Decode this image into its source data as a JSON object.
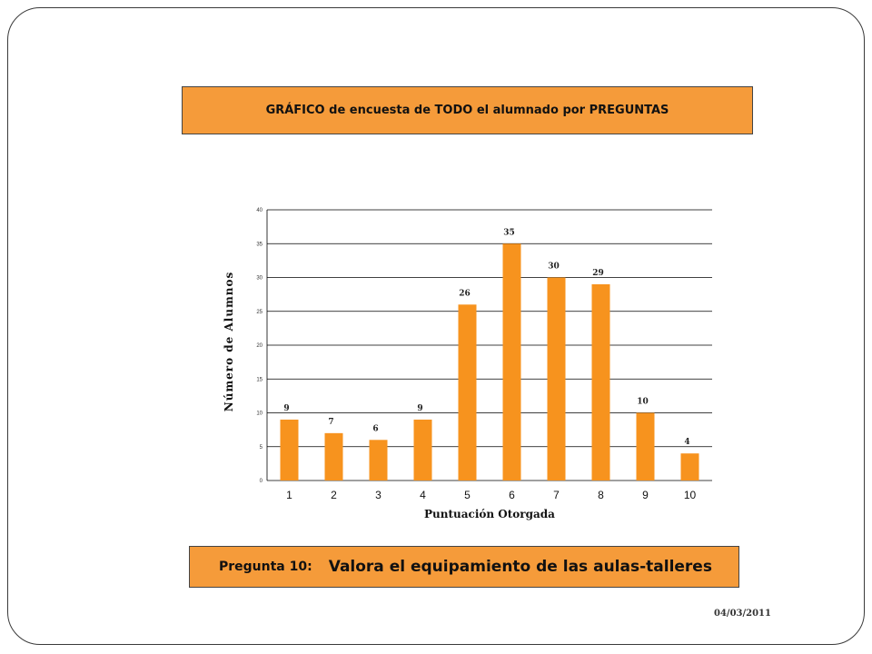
{
  "header": {
    "title": "GRÁFICO de encuesta de TODO  el alumnado por PREGUNTAS"
  },
  "question": {
    "label": "Pregunta 10:",
    "text": "Valora el equipamiento de las aulas-talleres"
  },
  "footer": {
    "date": "04/03/2011"
  },
  "colors": {
    "accent": "#F59B3A",
    "bar": "#F7931E",
    "grid": "#000000"
  },
  "chart_data": {
    "type": "bar",
    "categories": [
      "1",
      "2",
      "3",
      "4",
      "5",
      "6",
      "7",
      "8",
      "9",
      "10"
    ],
    "values": [
      9,
      7,
      6,
      9,
      26,
      35,
      30,
      29,
      10,
      4
    ],
    "title": "",
    "xlabel": "Puntuación Otorgada",
    "ylabel": "Número de Alumnos",
    "ylim": [
      0,
      40
    ],
    "yticks": [
      0,
      5,
      10,
      15,
      20,
      25,
      30,
      35,
      40
    ],
    "grid": true,
    "legend": "none",
    "data_labels": true
  }
}
